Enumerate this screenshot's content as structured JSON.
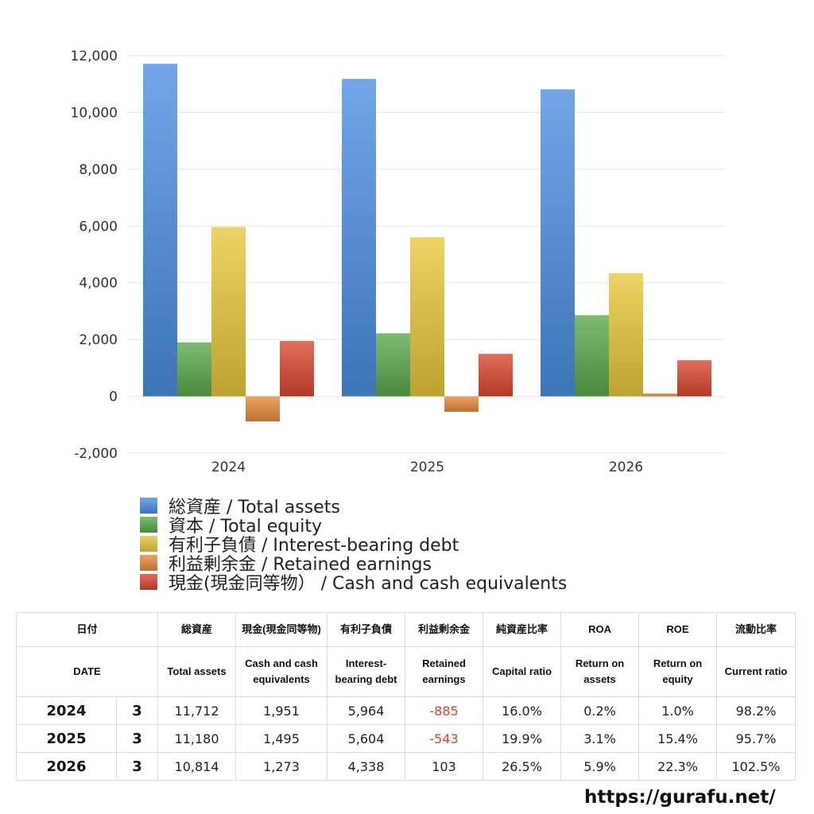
{
  "chart_data": {
    "type": "bar",
    "categories": [
      "2024",
      "2025",
      "2026"
    ],
    "ylim": [
      -2000,
      12000
    ],
    "yticks": [
      "12,000",
      "10,000",
      "8,000",
      "6,000",
      "4,000",
      "2,000",
      "0",
      "-2,000"
    ],
    "ytick_values": [
      12000,
      10000,
      8000,
      6000,
      4000,
      2000,
      0,
      -2000
    ],
    "grid": true,
    "legend_position": "bottom",
    "series": [
      {
        "name": "総資産 / Total assets",
        "values": [
          11712,
          11180,
          10814
        ],
        "color": "#4a8de0"
      },
      {
        "name": "資本 / Total equity",
        "values": [
          1900,
          2220,
          2860
        ],
        "color": "#5aa84a"
      },
      {
        "name": "有利子負債 / Interest-bearing debt",
        "values": [
          5964,
          5604,
          4338
        ],
        "color": "#e6c63a"
      },
      {
        "name": "利益剰余金 / Retained earnings",
        "values": [
          -885,
          -543,
          103
        ],
        "color": "#e8893a"
      },
      {
        "name": "現金(現金同等物）  /  Cash and cash equivalents",
        "values": [
          1951,
          1495,
          1273
        ],
        "color": "#d9452e"
      }
    ]
  },
  "table": {
    "headers_jp": [
      "日付",
      "総資産",
      "現金(現金同等物)",
      "有利子負債",
      "利益剰余金",
      "純資産比率",
      "ROA",
      "ROE",
      "流動比率"
    ],
    "headers_en": [
      "DATE",
      "Total assets",
      "Cash and cash equivalents",
      "Interest-bearing debt",
      "Retained earnings",
      "Capital ratio",
      "Return on assets",
      "Return on equity",
      "Current ratio"
    ],
    "rows": [
      {
        "year": "2024",
        "month": "3",
        "total_assets": "11,712",
        "cash": "1,951",
        "debt": "5,964",
        "retained": "-885",
        "capital_ratio": "16.0%",
        "roa": "0.2%",
        "roe": "1.0%",
        "current_ratio": "98.2%"
      },
      {
        "year": "2025",
        "month": "3",
        "total_assets": "11,180",
        "cash": "1,495",
        "debt": "5,604",
        "retained": "-543",
        "capital_ratio": "19.9%",
        "roa": "3.1%",
        "roe": "15.4%",
        "current_ratio": "95.7%"
      },
      {
        "year": "2026",
        "month": "3",
        "total_assets": "10,814",
        "cash": "1,273",
        "debt": "4,338",
        "retained": "103",
        "capital_ratio": "26.5%",
        "roa": "5.9%",
        "roe": "22.3%",
        "current_ratio": "102.5%"
      }
    ]
  },
  "footer": {
    "url": "https://gurafu.net/"
  }
}
